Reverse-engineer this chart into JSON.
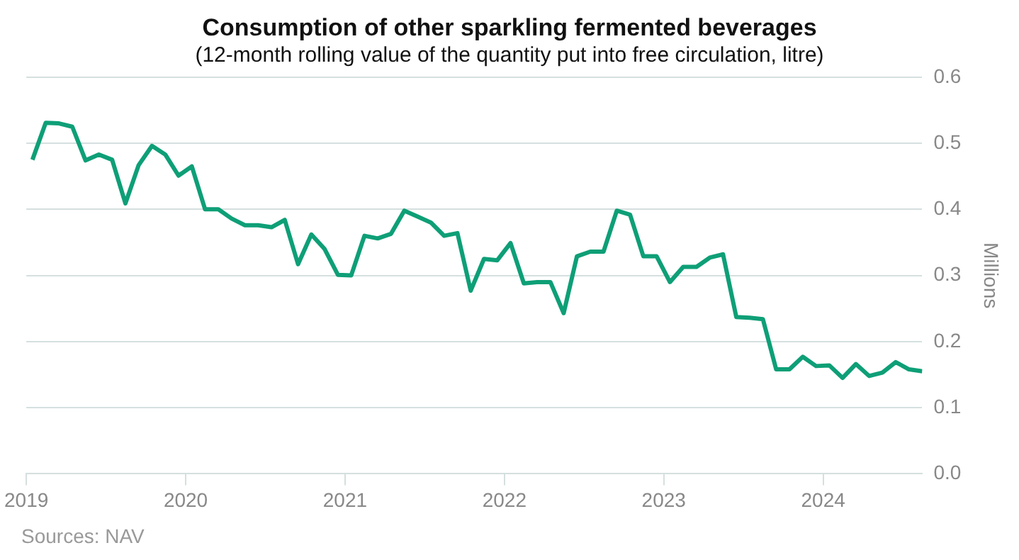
{
  "chart_data": {
    "type": "line",
    "title": "Consumption of other sparkling fermented beverages",
    "subtitle": "(12-month rolling value of the quantity put into free circulation, litre)",
    "ylabel": "Millions",
    "annotations": [
      "Sources: NAV"
    ],
    "x": [
      "2019-01-15",
      "2019-02-15",
      "2019-03-15",
      "2019-04-15",
      "2019-05-15",
      "2019-06-15",
      "2019-07-15",
      "2019-08-15",
      "2019-09-15",
      "2019-10-15",
      "2019-11-15",
      "2019-12-15",
      "2020-01-15",
      "2020-02-15",
      "2020-03-15",
      "2020-04-15",
      "2020-05-15",
      "2020-06-15",
      "2020-07-15",
      "2020-08-15",
      "2020-09-15",
      "2020-10-15",
      "2020-11-15",
      "2020-12-15",
      "2021-01-15",
      "2021-02-15",
      "2021-03-15",
      "2021-04-15",
      "2021-05-15",
      "2021-06-15",
      "2021-07-15",
      "2021-08-15",
      "2021-09-15",
      "2021-10-15",
      "2021-11-15",
      "2021-12-15",
      "2022-01-15",
      "2022-02-15",
      "2022-03-15",
      "2022-04-15",
      "2022-05-15",
      "2022-06-15",
      "2022-07-15",
      "2022-08-15",
      "2022-09-15",
      "2022-10-15",
      "2022-11-15",
      "2022-12-15",
      "2023-01-15",
      "2023-02-15",
      "2023-03-15",
      "2023-04-15",
      "2023-05-15",
      "2023-06-15",
      "2023-07-15",
      "2023-08-15",
      "2023-09-15",
      "2023-10-15",
      "2023-11-15",
      "2023-12-15",
      "2024-01-15",
      "2024-02-15",
      "2024-03-15",
      "2024-04-15",
      "2024-05-15",
      "2024-06-15",
      "2024-07-15",
      "2024-08-15"
    ],
    "series": [
      {
        "color": "#0e9f77",
        "values": [
          0.475,
          0.531,
          0.53,
          0.525,
          0.474,
          0.483,
          0.475,
          0.409,
          0.467,
          0.496,
          0.483,
          0.451,
          0.465,
          0.4,
          0.4,
          0.386,
          0.376,
          0.376,
          0.373,
          0.384,
          0.317,
          0.362,
          0.34,
          0.301,
          0.3,
          0.36,
          0.356,
          0.363,
          0.398,
          0.389,
          0.38,
          0.36,
          0.364,
          0.277,
          0.325,
          0.323,
          0.349,
          0.288,
          0.29,
          0.29,
          0.243,
          0.329,
          0.336,
          0.336,
          0.398,
          0.392,
          0.329,
          0.329,
          0.29,
          0.313,
          0.313,
          0.327,
          0.332,
          0.237,
          0.236,
          0.234,
          0.158,
          0.158,
          0.177,
          0.163,
          0.164,
          0.145,
          0.166,
          0.148,
          0.153,
          0.169,
          0.158,
          0.155
        ]
      }
    ],
    "xlim": [
      "2019-01-01",
      "2024-08-15"
    ],
    "xticks": [
      "2019",
      "2020",
      "2021",
      "2022",
      "2023",
      "2024"
    ],
    "ylim": [
      0,
      0.6
    ],
    "yticks": [
      {
        "value": 0,
        "label": "0.0"
      },
      0.1,
      0.2,
      0.3,
      0.4,
      0.5,
      0.6
    ],
    "grid": "y",
    "legend": false,
    "marker": "none",
    "line_style": "solid"
  }
}
